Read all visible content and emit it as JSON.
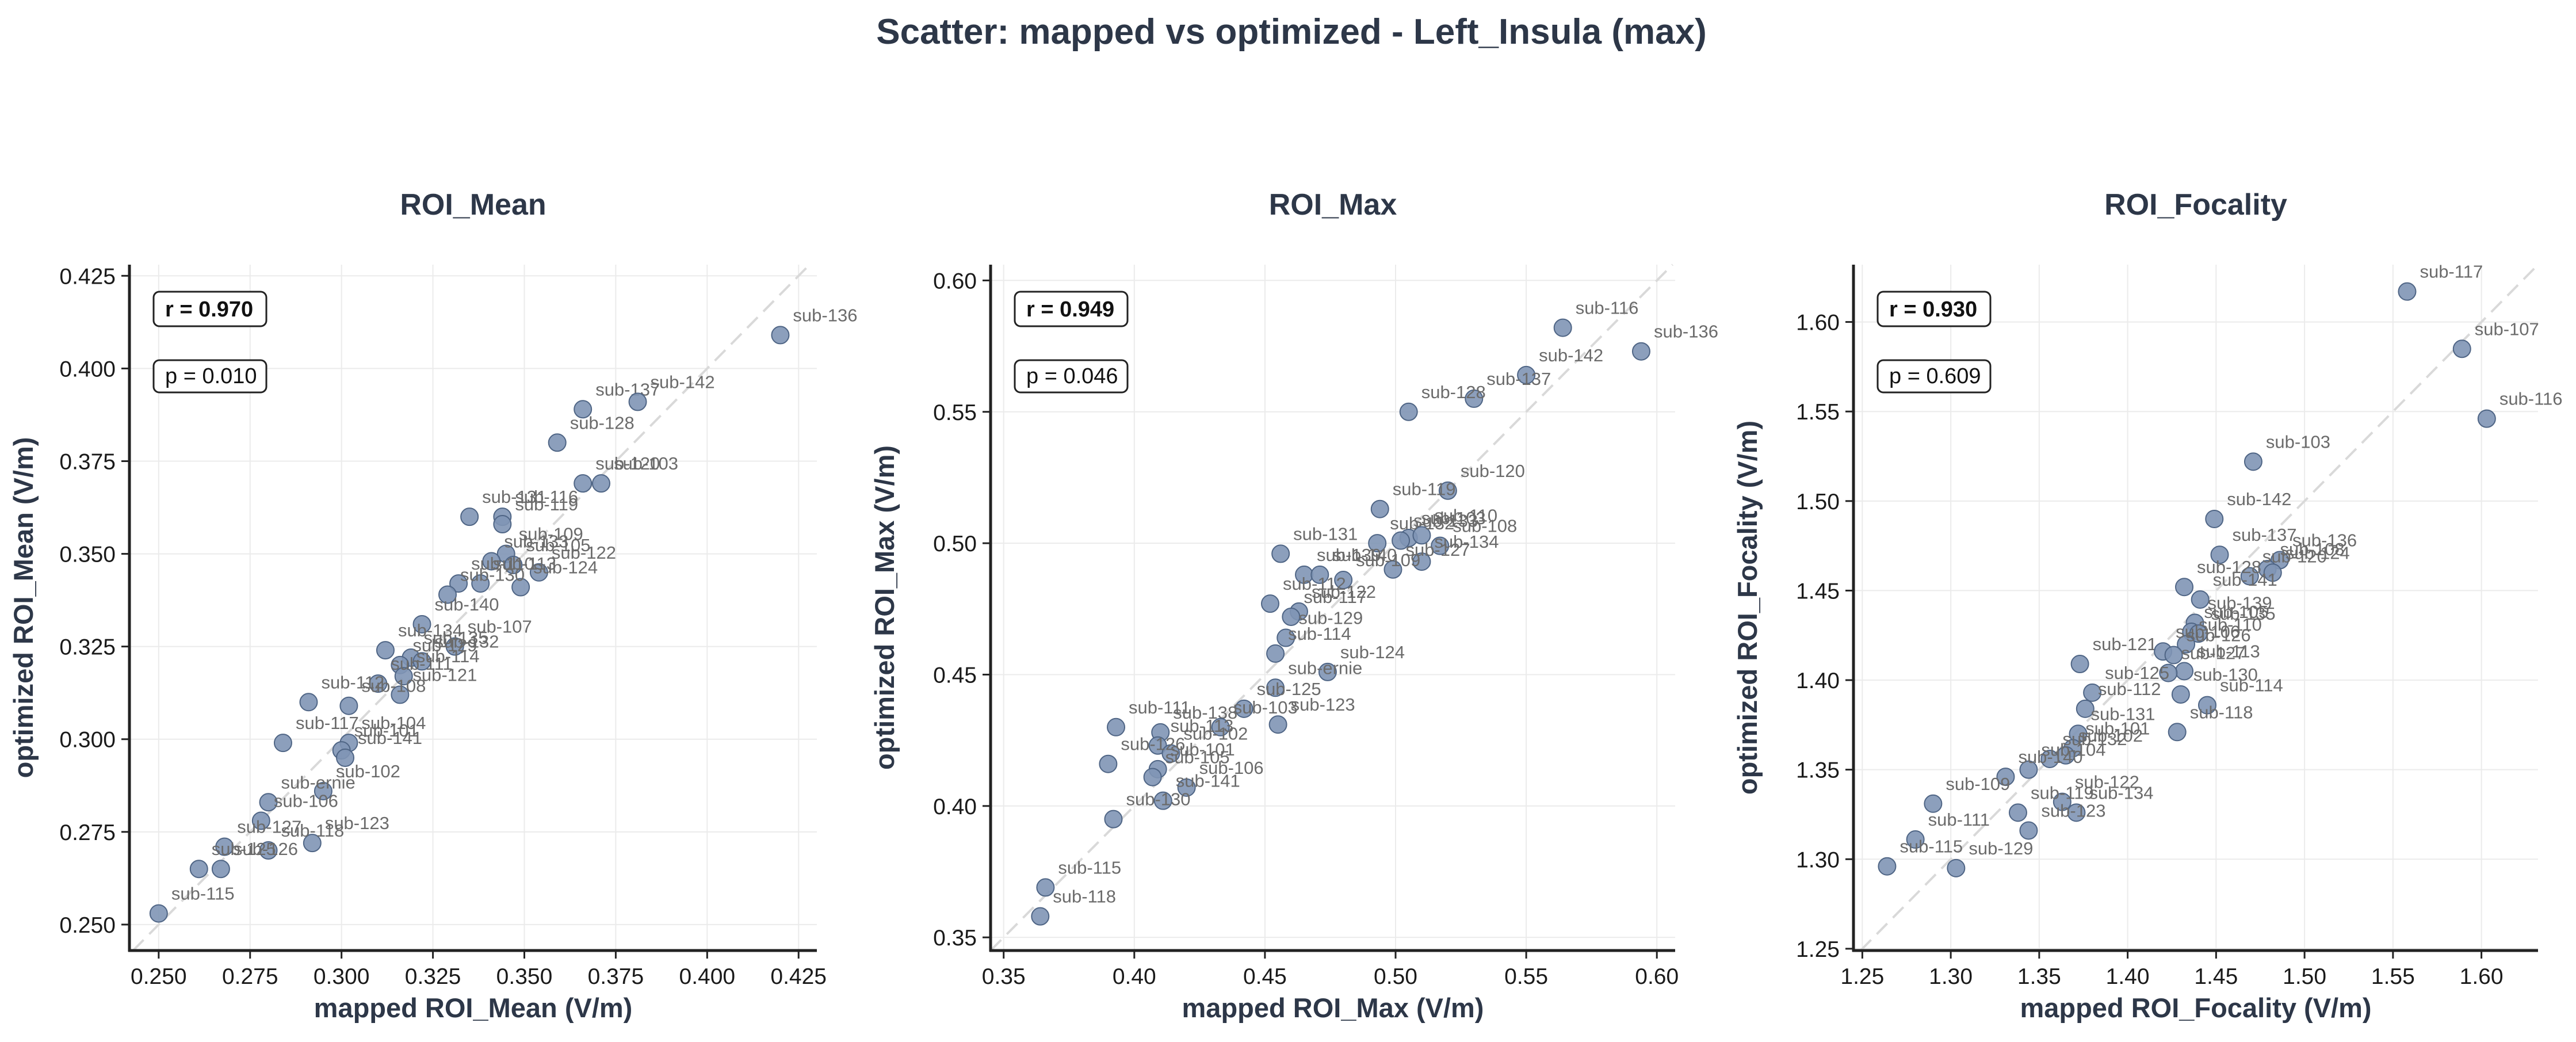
{
  "title": "Scatter: mapped vs optimized - Left_Insula (max)",
  "colors": {
    "point": "#7f95b5",
    "point_edge": "#4f6585",
    "grid": "#ebebeb",
    "identity": "#d9d9d9",
    "axis": "#222222"
  },
  "chart_data": [
    {
      "type": "scatter",
      "title": "ROI_Mean",
      "xlabel": "mapped ROI_Mean (V/m)",
      "ylabel": "optimized ROI_Mean (V/m)",
      "xlim": [
        0.242,
        0.43
      ],
      "ylim": [
        0.243,
        0.428
      ],
      "xticks": [
        "0.250",
        "0.275",
        "0.300",
        "0.325",
        "0.350",
        "0.375",
        "0.400",
        "0.425"
      ],
      "yticks": [
        "0.250",
        "0.275",
        "0.300",
        "0.325",
        "0.350",
        "0.375",
        "0.400",
        "0.425"
      ],
      "grid": true,
      "identity_line": true,
      "stat_r": "r = 0.970",
      "stat_p": "p = 0.010",
      "points": [
        {
          "label": "sub-136",
          "x": 0.42,
          "y": 0.409
        },
        {
          "label": "sub-137",
          "x": 0.366,
          "y": 0.389
        },
        {
          "label": "sub-142",
          "x": 0.381,
          "y": 0.391
        },
        {
          "label": "sub-128",
          "x": 0.359,
          "y": 0.38
        },
        {
          "label": "sub-120",
          "x": 0.366,
          "y": 0.369
        },
        {
          "label": "sub-103",
          "x": 0.371,
          "y": 0.369
        },
        {
          "label": "sub-131",
          "x": 0.335,
          "y": 0.36
        },
        {
          "label": "sub-116",
          "x": 0.344,
          "y": 0.36
        },
        {
          "label": "sub-119",
          "x": 0.344,
          "y": 0.358
        },
        {
          "label": "sub-109",
          "x": 0.345,
          "y": 0.35
        },
        {
          "label": "sub-133",
          "x": 0.341,
          "y": 0.348
        },
        {
          "label": "sub-105",
          "x": 0.347,
          "y": 0.347
        },
        {
          "label": "sub-122",
          "x": 0.354,
          "y": 0.345
        },
        {
          "label": "sub-124",
          "x": 0.349,
          "y": 0.341
        },
        {
          "label": "sub-110",
          "x": 0.332,
          "y": 0.342
        },
        {
          "label": "sub-113",
          "x": 0.338,
          "y": 0.342
        },
        {
          "label": "sub-130",
          "x": 0.329,
          "y": 0.339
        },
        {
          "label": "sub-140",
          "x": 0.322,
          "y": 0.331
        },
        {
          "label": "sub-107",
          "x": 0.331,
          "y": 0.325
        },
        {
          "label": "sub-134",
          "x": 0.312,
          "y": 0.324
        },
        {
          "label": "sub-135",
          "x": 0.319,
          "y": 0.322
        },
        {
          "label": "sub-129",
          "x": 0.316,
          "y": 0.32
        },
        {
          "label": "sub-132",
          "x": 0.322,
          "y": 0.321
        },
        {
          "label": "sub-114",
          "x": 0.317,
          "y": 0.317
        },
        {
          "label": "sub-111",
          "x": 0.31,
          "y": 0.315
        },
        {
          "label": "sub-121",
          "x": 0.316,
          "y": 0.312
        },
        {
          "label": "sub-112",
          "x": 0.291,
          "y": 0.31
        },
        {
          "label": "sub-108",
          "x": 0.302,
          "y": 0.309
        },
        {
          "label": "sub-104",
          "x": 0.302,
          "y": 0.299
        },
        {
          "label": "sub-101",
          "x": 0.3,
          "y": 0.297
        },
        {
          "label": "sub-117",
          "x": 0.284,
          "y": 0.299
        },
        {
          "label": "sub-141",
          "x": 0.301,
          "y": 0.295
        },
        {
          "label": "sub-102",
          "x": 0.295,
          "y": 0.286
        },
        {
          "label": "sub-ernie",
          "x": 0.28,
          "y": 0.283
        },
        {
          "label": "sub-106",
          "x": 0.278,
          "y": 0.278
        },
        {
          "label": "sub-123",
          "x": 0.292,
          "y": 0.272
        },
        {
          "label": "sub-127",
          "x": 0.268,
          "y": 0.271
        },
        {
          "label": "sub-118",
          "x": 0.28,
          "y": 0.27
        },
        {
          "label": "sub-125",
          "x": 0.261,
          "y": 0.265
        },
        {
          "label": "sub-126",
          "x": 0.267,
          "y": 0.265
        },
        {
          "label": "sub-115",
          "x": 0.25,
          "y": 0.253
        }
      ]
    },
    {
      "type": "scatter",
      "title": "ROI_Max",
      "xlabel": "mapped ROI_Max (V/m)",
      "ylabel": "optimized ROI_Max (V/m)",
      "xlim": [
        0.345,
        0.607
      ],
      "ylim": [
        0.345,
        0.606
      ],
      "xticks": [
        "0.35",
        "0.40",
        "0.45",
        "0.50",
        "0.55",
        "0.60"
      ],
      "yticks": [
        "0.35",
        "0.40",
        "0.45",
        "0.50",
        "0.55",
        "0.60"
      ],
      "grid": true,
      "identity_line": true,
      "stat_r": "r = 0.949",
      "stat_p": "p = 0.046",
      "points": [
        {
          "label": "sub-116",
          "x": 0.564,
          "y": 0.582
        },
        {
          "label": "sub-136",
          "x": 0.594,
          "y": 0.573
        },
        {
          "label": "sub-142",
          "x": 0.55,
          "y": 0.564
        },
        {
          "label": "sub-137",
          "x": 0.53,
          "y": 0.555
        },
        {
          "label": "sub-128",
          "x": 0.505,
          "y": 0.55
        },
        {
          "label": "sub-120",
          "x": 0.52,
          "y": 0.52
        },
        {
          "label": "sub-119",
          "x": 0.494,
          "y": 0.513
        },
        {
          "label": "sub-103",
          "x": 0.505,
          "y": 0.502
        },
        {
          "label": "sub-110",
          "x": 0.51,
          "y": 0.503
        },
        {
          "label": "sub-133",
          "x": 0.502,
          "y": 0.501
        },
        {
          "label": "sub-108",
          "x": 0.517,
          "y": 0.499
        },
        {
          "label": "sub-132",
          "x": 0.493,
          "y": 0.5
        },
        {
          "label": "sub-134",
          "x": 0.51,
          "y": 0.493
        },
        {
          "label": "sub-127",
          "x": 0.499,
          "y": 0.49
        },
        {
          "label": "sub-131",
          "x": 0.456,
          "y": 0.496
        },
        {
          "label": "sub-139",
          "x": 0.465,
          "y": 0.488
        },
        {
          "label": "sub-140",
          "x": 0.471,
          "y": 0.488
        },
        {
          "label": "sub-109",
          "x": 0.48,
          "y": 0.486
        },
        {
          "label": "sub-112",
          "x": 0.452,
          "y": 0.477
        },
        {
          "label": "sub-122",
          "x": 0.463,
          "y": 0.474
        },
        {
          "label": "sub-117",
          "x": 0.46,
          "y": 0.472
        },
        {
          "label": "sub-129",
          "x": 0.458,
          "y": 0.464
        },
        {
          "label": "sub-114",
          "x": 0.454,
          "y": 0.458
        },
        {
          "label": "sub-124",
          "x": 0.474,
          "y": 0.451
        },
        {
          "label": "sub-ernie",
          "x": 0.454,
          "y": 0.445
        },
        {
          "label": "sub-125",
          "x": 0.442,
          "y": 0.437
        },
        {
          "label": "sub-123",
          "x": 0.455,
          "y": 0.431
        },
        {
          "label": "sub-111",
          "x": 0.393,
          "y": 0.43
        },
        {
          "label": "sub-138",
          "x": 0.41,
          "y": 0.428
        },
        {
          "label": "sub-103",
          "x": 0.433,
          "y": 0.43
        },
        {
          "label": "sub-113",
          "x": 0.409,
          "y": 0.423
        },
        {
          "label": "sub-102",
          "x": 0.414,
          "y": 0.42
        },
        {
          "label": "sub-101",
          "x": 0.409,
          "y": 0.414
        },
        {
          "label": "sub-126",
          "x": 0.39,
          "y": 0.416
        },
        {
          "label": "sub-105",
          "x": 0.407,
          "y": 0.411
        },
        {
          "label": "sub-106",
          "x": 0.42,
          "y": 0.407
        },
        {
          "label": "sub-141",
          "x": 0.411,
          "y": 0.402
        },
        {
          "label": "sub-130",
          "x": 0.392,
          "y": 0.395
        },
        {
          "label": "sub-115",
          "x": 0.366,
          "y": 0.369
        },
        {
          "label": "sub-118",
          "x": 0.364,
          "y": 0.358
        }
      ]
    },
    {
      "type": "scatter",
      "title": "ROI_Focality",
      "xlabel": "mapped ROI_Focality (V/m)",
      "ylabel": "optimized ROI_Focality (V/m)",
      "xlim": [
        1.245,
        1.632
      ],
      "ylim": [
        1.249,
        1.632
      ],
      "xticks": [
        "1.25",
        "1.30",
        "1.35",
        "1.40",
        "1.45",
        "1.50",
        "1.55",
        "1.60"
      ],
      "yticks": [
        "1.25",
        "1.30",
        "1.35",
        "1.40",
        "1.45",
        "1.50",
        "1.55",
        "1.60"
      ],
      "grid": true,
      "identity_line": true,
      "stat_r": "r = 0.930",
      "stat_p": "p = 0.609",
      "points": [
        {
          "label": "sub-117",
          "x": 1.558,
          "y": 1.617
        },
        {
          "label": "sub-107",
          "x": 1.589,
          "y": 1.585
        },
        {
          "label": "sub-116",
          "x": 1.603,
          "y": 1.546
        },
        {
          "label": "sub-103",
          "x": 1.471,
          "y": 1.522
        },
        {
          "label": "sub-142",
          "x": 1.449,
          "y": 1.49
        },
        {
          "label": "sub-137",
          "x": 1.452,
          "y": 1.47
        },
        {
          "label": "sub-136",
          "x": 1.486,
          "y": 1.467
        },
        {
          "label": "sub-108",
          "x": 1.479,
          "y": 1.462
        },
        {
          "label": "sub-124",
          "x": 1.482,
          "y": 1.46
        },
        {
          "label": "sub-120",
          "x": 1.469,
          "y": 1.458
        },
        {
          "label": "sub-128",
          "x": 1.432,
          "y": 1.452
        },
        {
          "label": "sub-141",
          "x": 1.441,
          "y": 1.445
        },
        {
          "label": "sub-139",
          "x": 1.438,
          "y": 1.432
        },
        {
          "label": "sub-105",
          "x": 1.436,
          "y": 1.427
        },
        {
          "label": "sub-135",
          "x": 1.44,
          "y": 1.426
        },
        {
          "label": "sub-110",
          "x": 1.433,
          "y": 1.42
        },
        {
          "label": "sub-121",
          "x": 1.373,
          "y": 1.409
        },
        {
          "label": "sub-106",
          "x": 1.42,
          "y": 1.416
        },
        {
          "label": "sub-126",
          "x": 1.426,
          "y": 1.414
        },
        {
          "label": "sub-113",
          "x": 1.432,
          "y": 1.405
        },
        {
          "label": "sub-127",
          "x": 1.423,
          "y": 1.404
        },
        {
          "label": "sub-125",
          "x": 1.38,
          "y": 1.393
        },
        {
          "label": "sub-130",
          "x": 1.43,
          "y": 1.392
        },
        {
          "label": "sub-112",
          "x": 1.376,
          "y": 1.384
        },
        {
          "label": "sub-114",
          "x": 1.445,
          "y": 1.386
        },
        {
          "label": "sub-131",
          "x": 1.372,
          "y": 1.37
        },
        {
          "label": "sub-118",
          "x": 1.428,
          "y": 1.371
        },
        {
          "label": "sub-101",
          "x": 1.369,
          "y": 1.362
        },
        {
          "label": "sub-102",
          "x": 1.365,
          "y": 1.358
        },
        {
          "label": "sub-132",
          "x": 1.356,
          "y": 1.356
        },
        {
          "label": "sub-104",
          "x": 1.344,
          "y": 1.35
        },
        {
          "label": "sub-140",
          "x": 1.331,
          "y": 1.346
        },
        {
          "label": "sub-109",
          "x": 1.29,
          "y": 1.331
        },
        {
          "label": "sub-122",
          "x": 1.363,
          "y": 1.332
        },
        {
          "label": "sub-119",
          "x": 1.338,
          "y": 1.326
        },
        {
          "label": "sub-134",
          "x": 1.371,
          "y": 1.326
        },
        {
          "label": "sub-123",
          "x": 1.344,
          "y": 1.316
        },
        {
          "label": "sub-111",
          "x": 1.28,
          "y": 1.311
        },
        {
          "label": "sub-115",
          "x": 1.264,
          "y": 1.296
        },
        {
          "label": "sub-129",
          "x": 1.303,
          "y": 1.295
        }
      ]
    }
  ]
}
